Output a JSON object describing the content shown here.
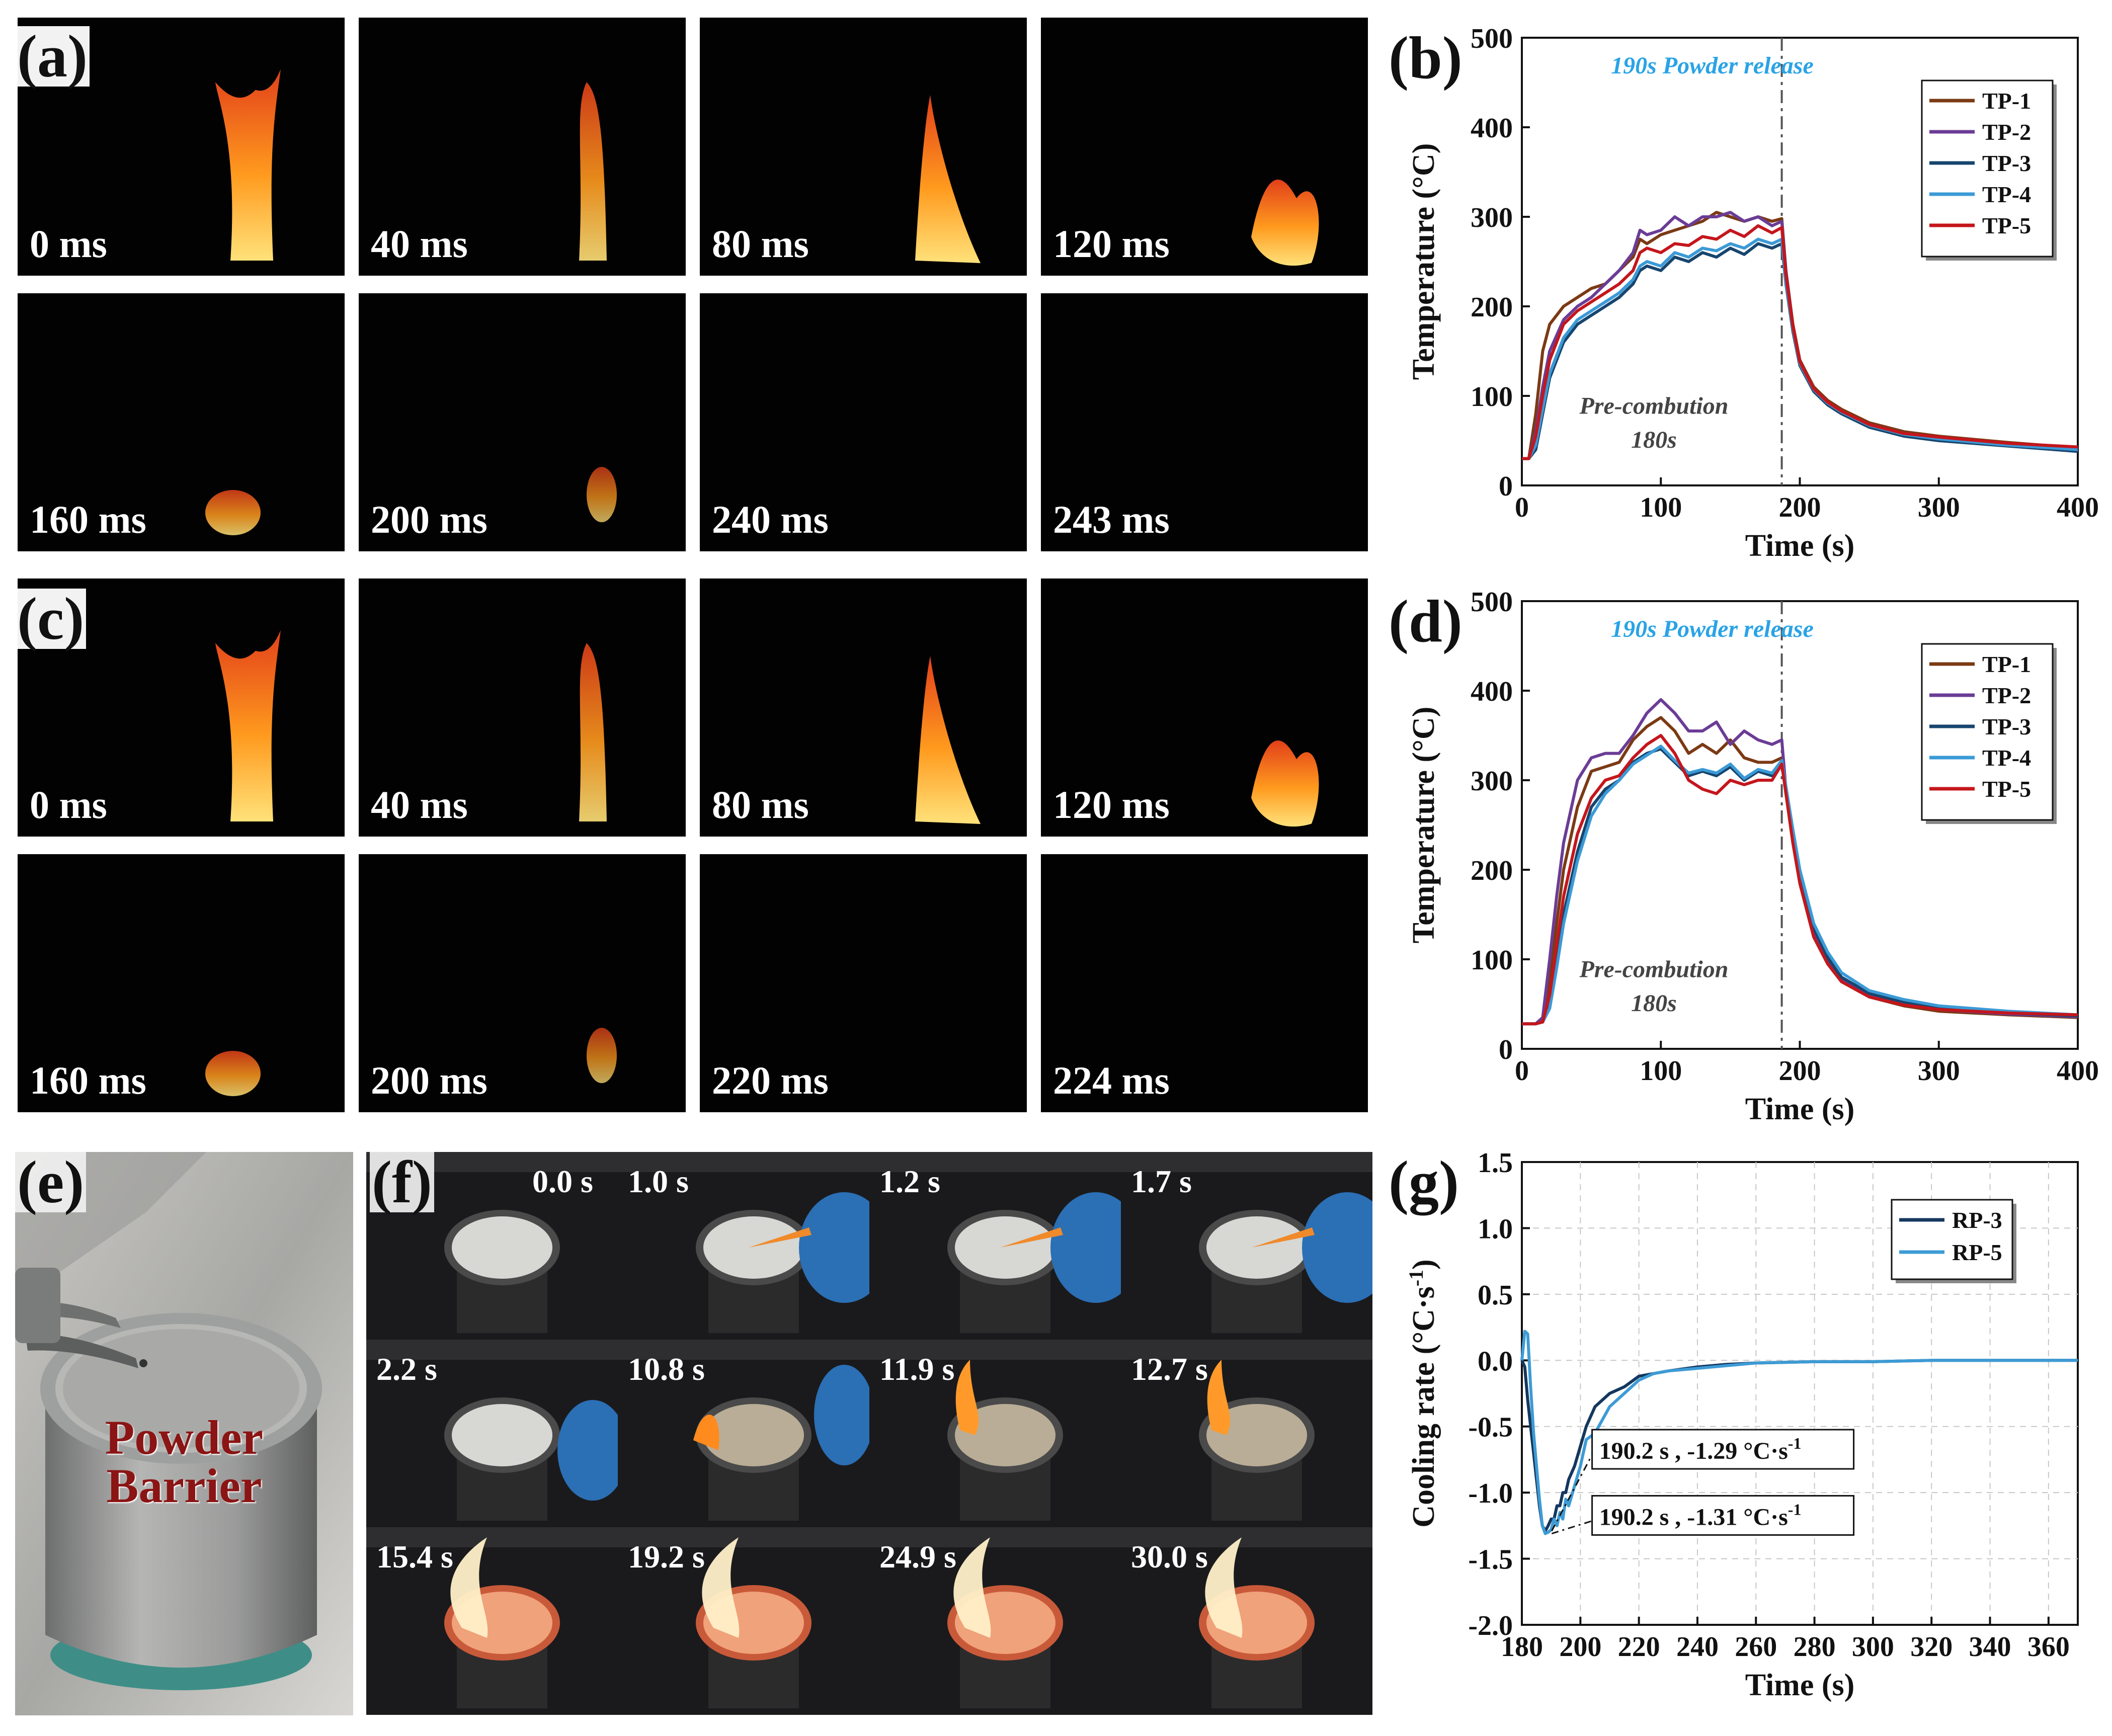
{
  "panels": {
    "a": {
      "label": "(a)",
      "times": [
        "0 ms",
        "40 ms",
        "80 ms",
        "120 ms",
        "160 ms",
        "200 ms",
        "240 ms",
        "243 ms"
      ]
    },
    "c": {
      "label": "(c)",
      "times": [
        "0 ms",
        "40 ms",
        "80 ms",
        "120 ms",
        "160 ms",
        "200 ms",
        "220 ms",
        "224 ms"
      ]
    },
    "e": {
      "label": "(e)",
      "caption_line1": "Powder",
      "caption_line2": "Barrier"
    },
    "f": {
      "label": "(f)",
      "times": [
        "0.0 s",
        "1.0 s",
        "1.2 s",
        "1.7 s",
        "2.2 s",
        "10.8 s",
        "11.9 s",
        "12.7 s",
        "15.4 s",
        "19.2 s",
        "24.9 s",
        "30.0 s"
      ]
    },
    "b": {
      "label": "(b)"
    },
    "d": {
      "label": "(d)"
    },
    "g": {
      "label": "(g)"
    }
  },
  "colors": {
    "tp1": "#7b3a14",
    "tp2": "#6b3c96",
    "tp3": "#17456e",
    "tp4": "#3b9ad6",
    "tp5": "#c4161c",
    "release_text": "#2aa3e6",
    "rp3": "#14375e",
    "rp5": "#3d9bd5"
  },
  "chart_data": [
    {
      "id": "b",
      "type": "line",
      "xlabel": "Time (s)",
      "ylabel": "Temperature (°C)",
      "xlim": [
        0,
        400
      ],
      "ylim": [
        0,
        500
      ],
      "xticks": [
        0,
        100,
        200,
        300,
        400
      ],
      "yticks": [
        0,
        100,
        200,
        300,
        400,
        500
      ],
      "annotations": {
        "release": "190s Powder release",
        "precomb_line1": "Pre-combution",
        "precomb_line2": "180s"
      },
      "release_x": 187,
      "legend": [
        "TP-1",
        "TP-2",
        "TP-3",
        "TP-4",
        "TP-5"
      ],
      "series": [
        {
          "name": "TP-1",
          "x": [
            0,
            5,
            10,
            15,
            20,
            30,
            40,
            50,
            60,
            70,
            80,
            85,
            90,
            100,
            110,
            120,
            130,
            140,
            150,
            160,
            170,
            180,
            187,
            190,
            195,
            200,
            210,
            220,
            230,
            250,
            275,
            300,
            350,
            400
          ],
          "y": [
            30,
            30,
            80,
            150,
            180,
            200,
            210,
            220,
            225,
            240,
            255,
            275,
            270,
            280,
            285,
            290,
            295,
            305,
            300,
            295,
            300,
            295,
            298,
            240,
            180,
            140,
            110,
            95,
            85,
            70,
            60,
            55,
            48,
            42
          ]
        },
        {
          "name": "TP-2",
          "x": [
            0,
            5,
            10,
            15,
            20,
            30,
            40,
            50,
            60,
            70,
            80,
            85,
            90,
            100,
            110,
            120,
            130,
            140,
            150,
            160,
            170,
            180,
            187,
            190,
            195,
            200,
            210,
            220,
            230,
            250,
            275,
            300,
            350,
            400
          ],
          "y": [
            30,
            30,
            60,
            110,
            150,
            185,
            200,
            210,
            225,
            240,
            260,
            285,
            280,
            285,
            300,
            290,
            300,
            300,
            305,
            295,
            300,
            290,
            295,
            238,
            178,
            138,
            108,
            93,
            83,
            68,
            58,
            53,
            46,
            41
          ]
        },
        {
          "name": "TP-3",
          "x": [
            0,
            5,
            10,
            15,
            20,
            30,
            40,
            50,
            60,
            70,
            80,
            85,
            90,
            100,
            110,
            120,
            130,
            140,
            150,
            160,
            170,
            180,
            187,
            190,
            195,
            200,
            210,
            220,
            230,
            250,
            275,
            300,
            350,
            400
          ],
          "y": [
            30,
            30,
            40,
            80,
            120,
            160,
            180,
            190,
            200,
            210,
            225,
            240,
            245,
            240,
            255,
            250,
            260,
            255,
            265,
            258,
            270,
            265,
            270,
            225,
            172,
            134,
            105,
            90,
            80,
            65,
            55,
            50,
            44,
            38
          ]
        },
        {
          "name": "TP-4",
          "x": [
            0,
            5,
            10,
            15,
            20,
            30,
            40,
            50,
            60,
            70,
            80,
            85,
            90,
            100,
            110,
            120,
            130,
            140,
            150,
            160,
            170,
            180,
            187,
            190,
            195,
            200,
            210,
            220,
            230,
            250,
            275,
            300,
            350,
            400
          ],
          "y": [
            30,
            30,
            45,
            85,
            125,
            165,
            185,
            195,
            205,
            215,
            230,
            245,
            250,
            245,
            260,
            255,
            265,
            262,
            270,
            265,
            275,
            270,
            275,
            228,
            175,
            136,
            107,
            92,
            82,
            67,
            57,
            52,
            45,
            40
          ]
        },
        {
          "name": "TP-5",
          "x": [
            0,
            5,
            10,
            15,
            20,
            30,
            40,
            50,
            60,
            70,
            80,
            85,
            90,
            100,
            110,
            120,
            130,
            140,
            150,
            160,
            170,
            180,
            187,
            190,
            195,
            200,
            210,
            220,
            230,
            250,
            275,
            300,
            350,
            400
          ],
          "y": [
            30,
            30,
            55,
            100,
            140,
            180,
            195,
            205,
            215,
            225,
            240,
            260,
            265,
            260,
            270,
            268,
            278,
            275,
            285,
            278,
            290,
            282,
            288,
            235,
            178,
            138,
            108,
            93,
            83,
            68,
            58,
            54,
            47,
            43
          ]
        }
      ]
    },
    {
      "id": "d",
      "type": "line",
      "xlabel": "Time (s)",
      "ylabel": "Temperature (°C)",
      "xlim": [
        0,
        400
      ],
      "ylim": [
        0,
        500
      ],
      "xticks": [
        0,
        100,
        200,
        300,
        400
      ],
      "yticks": [
        0,
        100,
        200,
        300,
        400,
        500
      ],
      "annotations": {
        "release": "190s Powder release",
        "precomb_line1": "Pre-combution",
        "precomb_line2": "180s"
      },
      "release_x": 187,
      "legend": [
        "TP-1",
        "TP-2",
        "TP-3",
        "TP-4",
        "TP-5"
      ],
      "series": [
        {
          "name": "TP-1",
          "x": [
            0,
            10,
            15,
            20,
            25,
            30,
            40,
            50,
            60,
            70,
            80,
            90,
            100,
            110,
            120,
            130,
            140,
            150,
            160,
            170,
            180,
            187,
            190,
            195,
            200,
            210,
            220,
            230,
            250,
            275,
            300,
            350,
            400
          ],
          "y": [
            28,
            28,
            30,
            80,
            140,
            200,
            270,
            310,
            315,
            320,
            345,
            360,
            370,
            355,
            330,
            340,
            330,
            345,
            325,
            320,
            320,
            325,
            285,
            230,
            185,
            125,
            95,
            75,
            58,
            48,
            42,
            38,
            35
          ]
        },
        {
          "name": "TP-2",
          "x": [
            0,
            10,
            15,
            20,
            25,
            30,
            40,
            50,
            60,
            70,
            80,
            90,
            100,
            110,
            120,
            130,
            140,
            150,
            160,
            170,
            180,
            187,
            190,
            195,
            200,
            210,
            220,
            230,
            250,
            275,
            300,
            350,
            400
          ],
          "y": [
            28,
            28,
            35,
            100,
            170,
            230,
            300,
            325,
            330,
            330,
            350,
            375,
            390,
            375,
            355,
            355,
            365,
            340,
            355,
            345,
            340,
            345,
            290,
            235,
            188,
            128,
            97,
            77,
            60,
            50,
            44,
            39,
            36
          ]
        },
        {
          "name": "TP-3",
          "x": [
            0,
            10,
            15,
            20,
            25,
            30,
            40,
            50,
            60,
            70,
            80,
            90,
            100,
            110,
            120,
            130,
            140,
            150,
            160,
            170,
            180,
            187,
            190,
            195,
            200,
            210,
            220,
            230,
            250,
            275,
            300,
            350,
            400
          ],
          "y": [
            28,
            28,
            30,
            50,
            100,
            150,
            220,
            270,
            290,
            300,
            320,
            330,
            335,
            320,
            305,
            310,
            305,
            315,
            300,
            310,
            305,
            320,
            290,
            240,
            195,
            135,
            102,
            80,
            62,
            52,
            46,
            40,
            37
          ]
        },
        {
          "name": "TP-4",
          "x": [
            0,
            10,
            15,
            20,
            25,
            30,
            40,
            50,
            60,
            70,
            80,
            90,
            100,
            110,
            120,
            130,
            140,
            150,
            160,
            170,
            180,
            187,
            190,
            195,
            200,
            210,
            220,
            230,
            250,
            275,
            300,
            350,
            400
          ],
          "y": [
            28,
            28,
            30,
            45,
            90,
            140,
            210,
            260,
            285,
            300,
            318,
            328,
            338,
            322,
            308,
            312,
            308,
            318,
            302,
            312,
            308,
            322,
            293,
            245,
            200,
            140,
            108,
            85,
            65,
            55,
            48,
            42,
            38
          ]
        },
        {
          "name": "TP-5",
          "x": [
            0,
            10,
            15,
            20,
            25,
            30,
            40,
            50,
            60,
            70,
            80,
            90,
            100,
            110,
            120,
            130,
            140,
            150,
            160,
            170,
            180,
            187,
            190,
            195,
            200,
            210,
            220,
            230,
            250,
            275,
            300,
            350,
            400
          ],
          "y": [
            28,
            28,
            30,
            60,
            115,
            170,
            240,
            280,
            300,
            305,
            325,
            340,
            350,
            330,
            300,
            290,
            285,
            300,
            295,
            300,
            300,
            318,
            285,
            230,
            185,
            125,
            95,
            75,
            58,
            49,
            44,
            40,
            38
          ]
        }
      ]
    },
    {
      "id": "g",
      "type": "line",
      "xlabel": "Time (s)",
      "ylabel": "Cooling rate (°C·s-1)",
      "xlim": [
        180,
        370
      ],
      "ylim": [
        -2.0,
        1.5
      ],
      "xticks": [
        180,
        200,
        220,
        240,
        260,
        280,
        300,
        320,
        340,
        360
      ],
      "yticks": [
        -2.0,
        -1.5,
        -1.0,
        -0.5,
        0.0,
        0.5,
        1.0,
        1.5
      ],
      "legend": [
        "RP-3",
        "RP-5"
      ],
      "annotations": [
        {
          "text": "190.2 s , -1.29 °C·s",
          "sup": "-1",
          "x": 190.2,
          "y": -1.29
        },
        {
          "text": "190.2 s , -1.31 °C·s",
          "sup": "-1",
          "x": 190.2,
          "y": -1.31
        }
      ],
      "series": [
        {
          "name": "RP-3",
          "x": [
            180,
            181,
            182,
            183,
            184,
            185,
            186,
            187,
            188,
            189,
            190,
            191,
            192,
            193,
            194,
            195,
            196,
            198,
            200,
            202,
            205,
            210,
            215,
            220,
            225,
            230,
            240,
            250,
            260,
            280,
            300,
            320,
            340,
            360,
            370
          ],
          "y": [
            0.0,
            -0.05,
            -0.3,
            -0.5,
            -0.7,
            -0.9,
            -1.1,
            -1.25,
            -1.29,
            -1.25,
            -1.2,
            -1.2,
            -1.1,
            -1.1,
            -1.0,
            -1.0,
            -0.9,
            -0.8,
            -0.65,
            -0.5,
            -0.35,
            -0.25,
            -0.2,
            -0.12,
            -0.1,
            -0.08,
            -0.05,
            -0.03,
            -0.02,
            -0.01,
            -0.01,
            0.0,
            0.0,
            0.0,
            0.0
          ]
        },
        {
          "name": "RP-5",
          "x": [
            180,
            181,
            182,
            183,
            184,
            185,
            186,
            187,
            188,
            189,
            190,
            191,
            192,
            193,
            194,
            195,
            196,
            198,
            200,
            202,
            205,
            210,
            215,
            220,
            225,
            230,
            240,
            250,
            260,
            280,
            300,
            320,
            340,
            360,
            370
          ],
          "y": [
            0.0,
            0.22,
            0.2,
            -0.2,
            -0.55,
            -0.8,
            -1.05,
            -1.25,
            -1.31,
            -1.3,
            -1.28,
            -1.2,
            -1.25,
            -1.15,
            -1.2,
            -1.05,
            -1.1,
            -0.95,
            -0.8,
            -0.6,
            -0.55,
            -0.35,
            -0.25,
            -0.15,
            -0.1,
            -0.08,
            -0.06,
            -0.04,
            -0.02,
            -0.01,
            -0.01,
            0.0,
            0.0,
            0.0,
            0.0
          ]
        }
      ]
    }
  ]
}
